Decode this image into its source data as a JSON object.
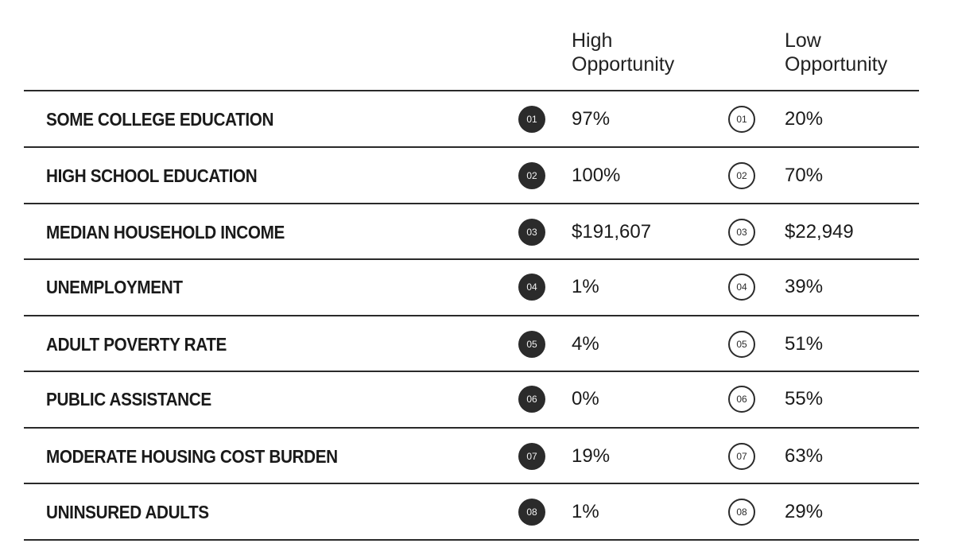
{
  "columns": {
    "high": {
      "line1": "High",
      "line2": "Opportunity"
    },
    "low": {
      "line1": "Low",
      "line2": "Opportunity"
    }
  },
  "rows": [
    {
      "label": "SOME COLLEGE EDUCATION",
      "num": "01",
      "high": "97%",
      "low": "20%"
    },
    {
      "label": "HIGH SCHOOL EDUCATION",
      "num": "02",
      "high": "100%",
      "low": "70%"
    },
    {
      "label": "MEDIAN HOUSEHOLD INCOME",
      "num": "03",
      "high": "$191,607",
      "low": "$22,949"
    },
    {
      "label": "UNEMPLOYMENT",
      "num": "04",
      "high": "1%",
      "low": "39%"
    },
    {
      "label": "ADULT POVERTY RATE",
      "num": "05",
      "high": "4%",
      "low": "51%"
    },
    {
      "label": "PUBLIC ASSISTANCE",
      "num": "06",
      "high": "0%",
      "low": "55%"
    },
    {
      "label": "MODERATE HOUSING COST BURDEN",
      "num": "07",
      "high": "19%",
      "low": "63%"
    },
    {
      "label": "UNINSURED ADULTS",
      "num": "08",
      "high": "1%",
      "low": "29%"
    }
  ]
}
